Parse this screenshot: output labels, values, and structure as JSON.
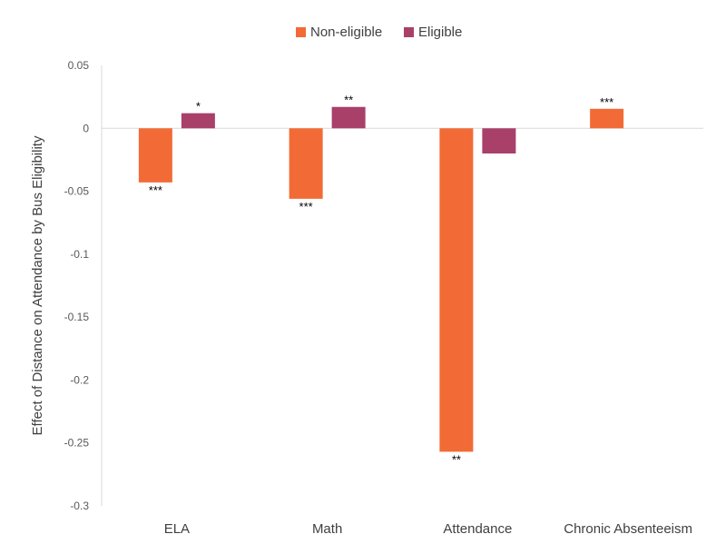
{
  "chart_data": {
    "type": "bar",
    "categories": [
      "ELA",
      "Math",
      "Attendance",
      "Chronic Absenteeism"
    ],
    "series": [
      {
        "name": "Non-eligible",
        "color": "#F26B36",
        "values": [
          -0.043,
          -0.056,
          -0.257,
          0.0155
        ],
        "labels": [
          "***",
          "***",
          "**",
          "***"
        ]
      },
      {
        "name": "Eligible",
        "color": "#A8406A",
        "values": [
          0.012,
          0.017,
          -0.02,
          null
        ],
        "labels": [
          "*",
          "**",
          "",
          ""
        ]
      }
    ],
    "ylabel": "Effect of Distance on Attendance by Bus Eligibility",
    "ylim": [
      -0.3,
      0.05
    ],
    "yticks": [
      "0.05",
      "0",
      "-0.05",
      "-0.1",
      "-0.15",
      "-0.2",
      "-0.25",
      "-0.3"
    ],
    "ytick_values": [
      0.05,
      0,
      -0.05,
      -0.1,
      -0.15,
      -0.2,
      -0.25,
      -0.3
    ],
    "grid": false,
    "legend_position": "top"
  }
}
